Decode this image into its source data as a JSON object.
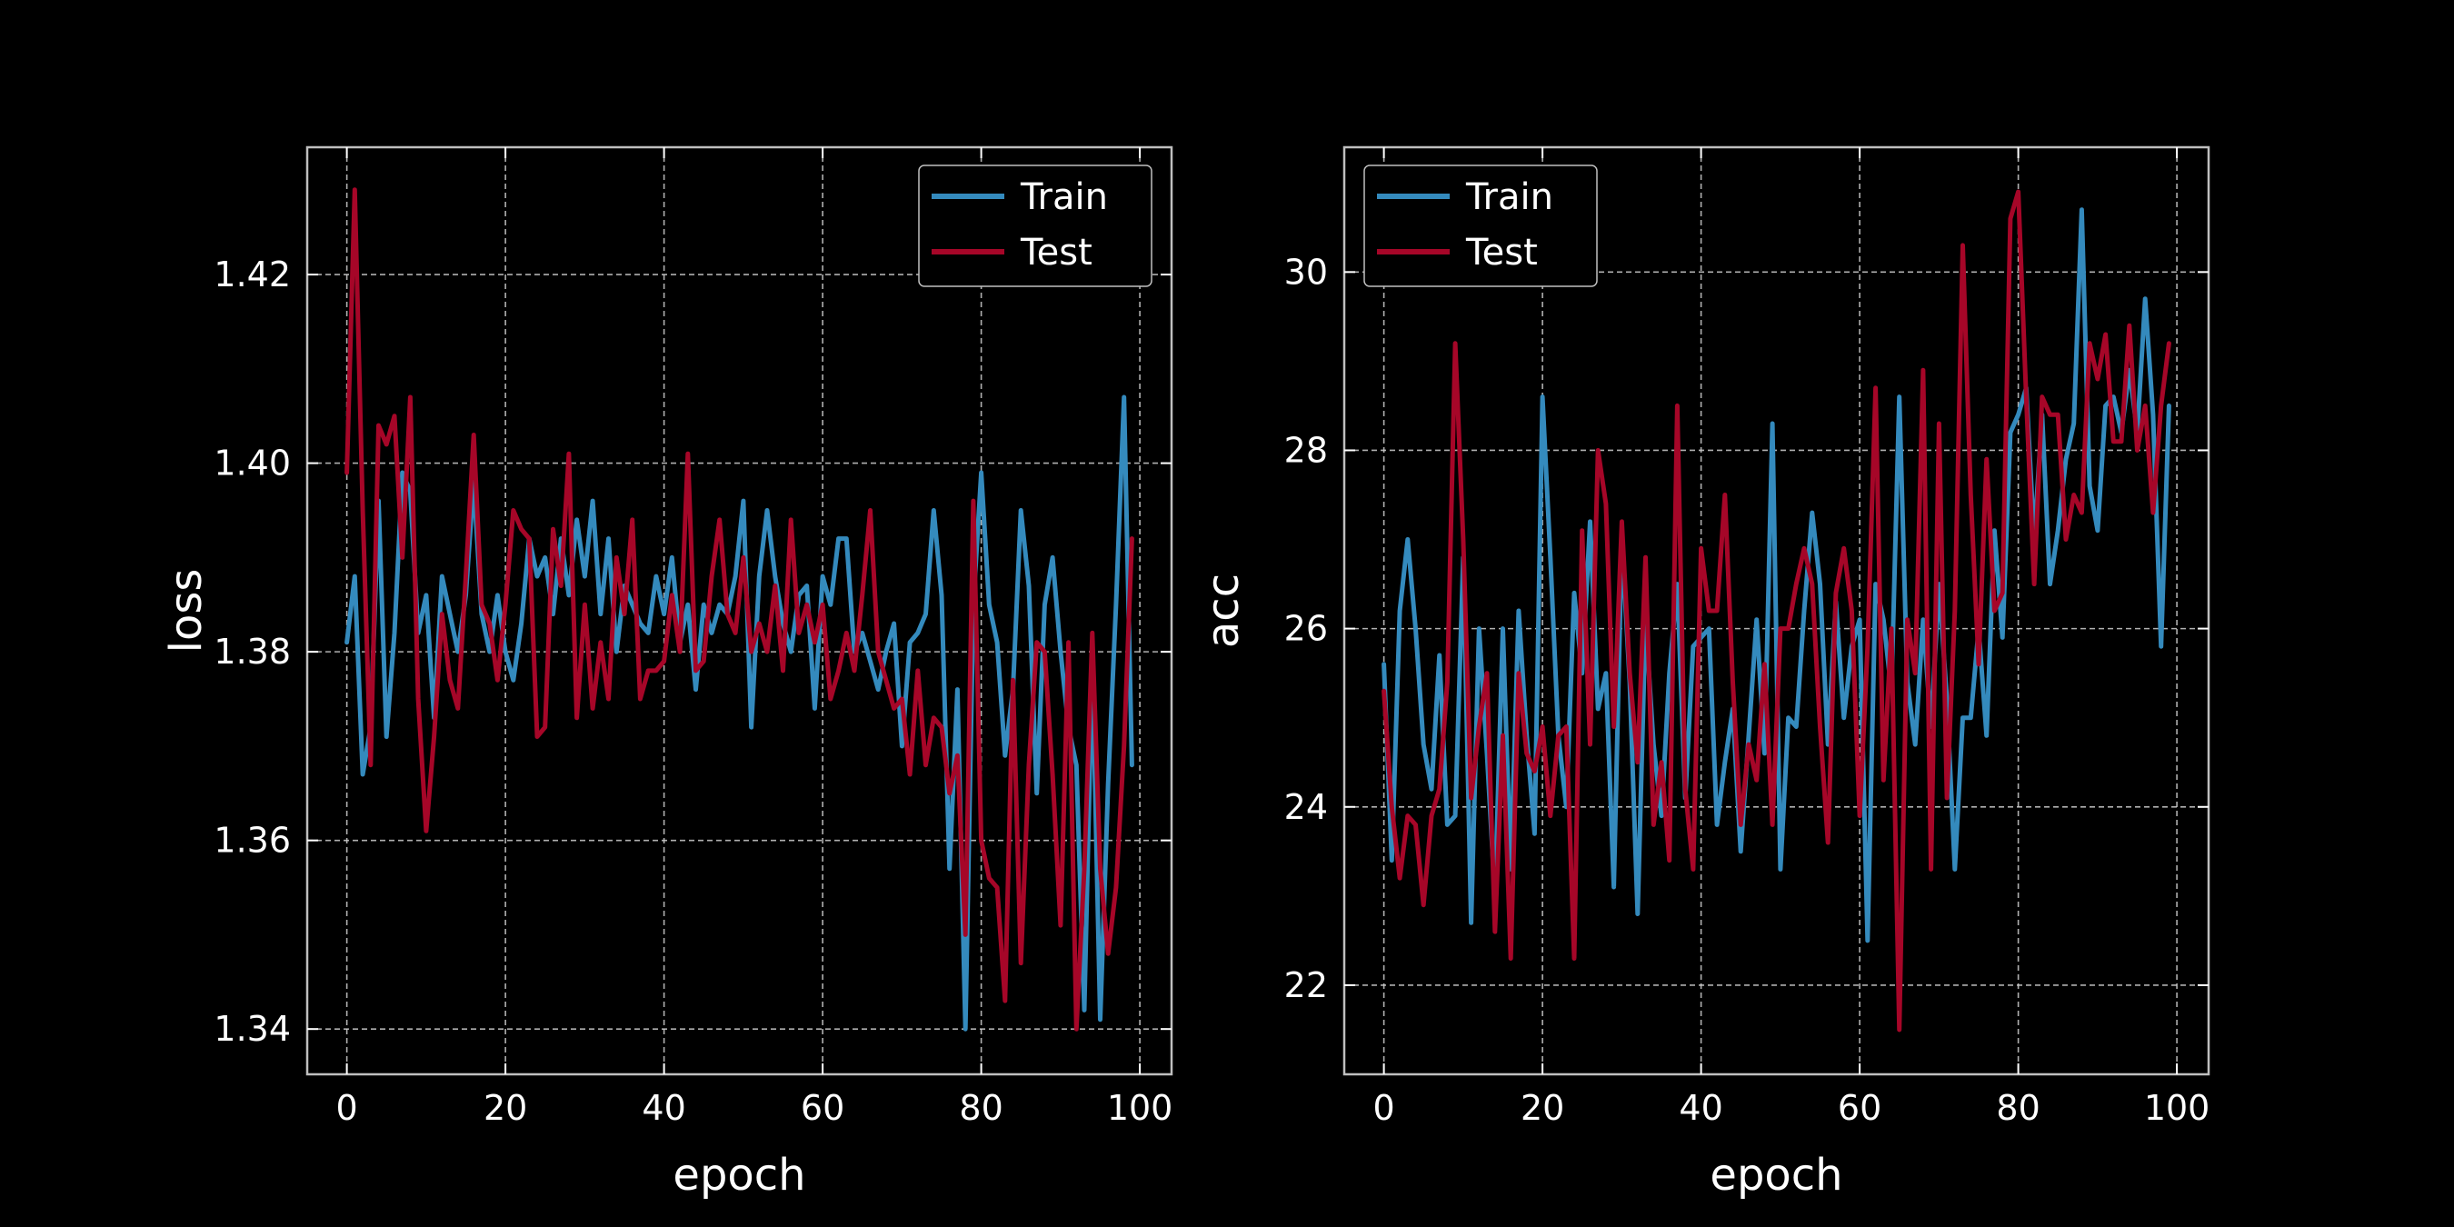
{
  "colors": {
    "background": "#000000",
    "train": "#348ABD",
    "test": "#A60628",
    "text": "#ffffff",
    "grid": "#cfcfcf"
  },
  "chart_data": [
    {
      "type": "line",
      "xlabel": "epoch",
      "ylabel": "loss",
      "xlim": [
        -5,
        104
      ],
      "ylim": [
        1.3352,
        1.4335
      ],
      "xticks": [
        0,
        20,
        40,
        60,
        80,
        100
      ],
      "yticks": [
        1.34,
        1.36,
        1.38,
        1.4,
        1.42
      ],
      "ytick_labels": [
        "1.34",
        "1.36",
        "1.38",
        "1.40",
        "1.42"
      ],
      "grid": true,
      "legend": "top-right",
      "series": [
        {
          "name": "Train",
          "color": "#348ABD",
          "values": [
            1.381,
            1.388,
            1.367,
            1.372,
            1.396,
            1.371,
            1.382,
            1.399,
            1.397,
            1.382,
            1.386,
            1.373,
            1.388,
            1.384,
            1.38,
            1.386,
            1.398,
            1.384,
            1.38,
            1.386,
            1.38,
            1.377,
            1.383,
            1.392,
            1.388,
            1.39,
            1.384,
            1.392,
            1.386,
            1.394,
            1.388,
            1.396,
            1.384,
            1.392,
            1.38,
            1.387,
            1.385,
            1.383,
            1.382,
            1.388,
            1.384,
            1.39,
            1.381,
            1.385,
            1.376,
            1.385,
            1.382,
            1.385,
            1.384,
            1.388,
            1.396,
            1.372,
            1.388,
            1.395,
            1.388,
            1.383,
            1.38,
            1.386,
            1.387,
            1.374,
            1.388,
            1.385,
            1.392,
            1.392,
            1.38,
            1.382,
            1.379,
            1.376,
            1.38,
            1.383,
            1.37,
            1.381,
            1.382,
            1.384,
            1.395,
            1.386,
            1.357,
            1.376,
            1.34,
            1.385,
            1.399,
            1.385,
            1.381,
            1.369,
            1.376,
            1.395,
            1.387,
            1.365,
            1.385,
            1.39,
            1.38,
            1.372,
            1.368,
            1.342,
            1.379,
            1.341,
            1.366,
            1.385,
            1.407,
            1.368
          ]
        },
        {
          "name": "Test",
          "color": "#A60628",
          "values": [
            1.399,
            1.429,
            1.395,
            1.368,
            1.404,
            1.402,
            1.405,
            1.39,
            1.407,
            1.375,
            1.361,
            1.371,
            1.384,
            1.377,
            1.374,
            1.388,
            1.403,
            1.385,
            1.383,
            1.377,
            1.385,
            1.395,
            1.393,
            1.392,
            1.371,
            1.372,
            1.393,
            1.387,
            1.401,
            1.373,
            1.385,
            1.374,
            1.381,
            1.375,
            1.39,
            1.384,
            1.394,
            1.375,
            1.378,
            1.378,
            1.379,
            1.386,
            1.38,
            1.401,
            1.378,
            1.379,
            1.388,
            1.394,
            1.384,
            1.382,
            1.39,
            1.38,
            1.383,
            1.38,
            1.387,
            1.378,
            1.394,
            1.382,
            1.385,
            1.381,
            1.385,
            1.375,
            1.378,
            1.382,
            1.378,
            1.386,
            1.395,
            1.38,
            1.377,
            1.374,
            1.375,
            1.367,
            1.378,
            1.368,
            1.373,
            1.372,
            1.365,
            1.369,
            1.35,
            1.396,
            1.36,
            1.356,
            1.355,
            1.343,
            1.377,
            1.347,
            1.368,
            1.381,
            1.38,
            1.367,
            1.351,
            1.381,
            1.34,
            1.357,
            1.382,
            1.357,
            1.348,
            1.355,
            1.37,
            1.392
          ]
        }
      ]
    },
    {
      "type": "line",
      "xlabel": "epoch",
      "ylabel": "acc",
      "xlim": [
        -5,
        104
      ],
      "ylim": [
        21.0,
        31.4
      ],
      "xticks": [
        0,
        20,
        40,
        60,
        80,
        100
      ],
      "yticks": [
        22,
        24,
        26,
        28,
        30
      ],
      "ytick_labels": [
        "22",
        "24",
        "26",
        "28",
        "30"
      ],
      "grid": true,
      "legend": "top-left",
      "series": [
        {
          "name": "Train",
          "color": "#348ABD",
          "values": [
            25.6,
            23.4,
            26.2,
            27.0,
            26.0,
            24.7,
            24.2,
            25.7,
            23.8,
            23.9,
            26.8,
            22.7,
            26.0,
            24.6,
            23.0,
            26.0,
            23.3,
            26.2,
            24.8,
            23.7,
            28.6,
            26.8,
            24.8,
            24.0,
            26.4,
            25.5,
            27.2,
            25.1,
            25.5,
            23.1,
            27.0,
            25.4,
            22.8,
            26.1,
            24.7,
            23.9,
            25.5,
            26.5,
            24.1,
            25.8,
            25.9,
            26.0,
            23.8,
            24.5,
            25.1,
            23.5,
            24.8,
            26.1,
            24.6,
            28.3,
            23.3,
            25.0,
            24.9,
            26.2,
            27.3,
            26.5,
            24.7,
            26.3,
            25.0,
            25.8,
            26.1,
            22.5,
            26.5,
            26.1,
            25.3,
            28.6,
            25.4,
            24.7,
            26.1,
            24.9,
            26.5,
            25.2,
            23.3,
            25.0,
            25.0,
            26.0,
            24.8,
            27.1,
            25.9,
            28.2,
            28.4,
            28.7,
            27.0,
            28.4,
            26.5,
            27.1,
            27.9,
            28.3,
            30.7,
            27.6,
            27.1,
            28.5,
            28.6,
            28.2,
            28.9,
            28.2,
            29.7,
            28.4,
            25.8,
            28.5
          ]
        },
        {
          "name": "Test",
          "color": "#A60628",
          "values": [
            25.3,
            24.0,
            23.2,
            23.9,
            23.8,
            22.9,
            23.9,
            24.2,
            25.4,
            29.2,
            27.0,
            24.1,
            24.9,
            25.5,
            22.6,
            24.8,
            22.3,
            25.5,
            24.6,
            24.4,
            24.9,
            23.9,
            24.8,
            24.9,
            22.3,
            27.1,
            24.7,
            28.0,
            27.4,
            24.9,
            27.2,
            25.5,
            24.5,
            26.8,
            23.8,
            24.5,
            23.4,
            28.5,
            24.2,
            23.3,
            26.9,
            26.2,
            26.2,
            27.5,
            25.4,
            23.8,
            24.7,
            24.3,
            25.6,
            23.8,
            26.0,
            26.0,
            26.5,
            26.9,
            26.5,
            24.9,
            23.6,
            26.4,
            26.9,
            26.2,
            23.9,
            25.8,
            28.7,
            24.3,
            26.0,
            21.5,
            26.1,
            25.5,
            28.9,
            23.3,
            28.3,
            24.1,
            26.2,
            30.3,
            27.5,
            25.6,
            27.9,
            26.2,
            26.4,
            30.6,
            30.9,
            28.6,
            26.5,
            28.6,
            28.4,
            28.4,
            27.0,
            27.5,
            27.3,
            29.2,
            28.8,
            29.3,
            28.1,
            28.1,
            29.4,
            28.0,
            28.5,
            27.3,
            28.5,
            29.2
          ]
        }
      ]
    }
  ]
}
